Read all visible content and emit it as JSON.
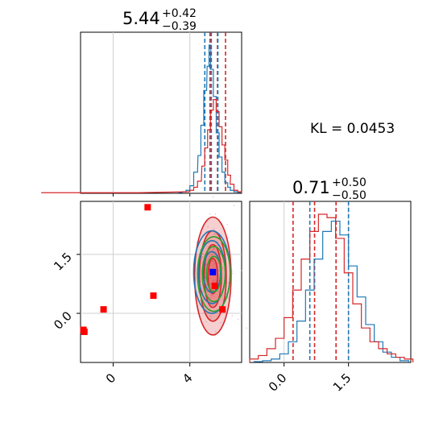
{
  "chart_data": [
    {
      "panel": "marginal-param-1",
      "type": "histogram",
      "title": {
        "main": "5.44",
        "sup": "+0.42",
        "sub": "−0.39"
      },
      "xlim": [
        -1.7,
        6.7
      ],
      "grid": true,
      "lines": {
        "red_dashed": [
          5.05,
          5.44,
          5.86
        ],
        "blue_dashed": [
          4.78,
          5.12,
          5.46
        ]
      },
      "series": [
        {
          "color": "#1f77b4",
          "x": [
            3.5,
            3.7,
            3.9,
            4.1,
            4.3,
            4.5,
            4.65,
            4.8,
            4.95,
            5.05,
            5.15,
            5.3,
            5.45,
            5.6,
            5.75,
            5.9,
            6.05,
            6.2,
            6.4,
            6.6
          ],
          "y": [
            0.5,
            1,
            2,
            5,
            14,
            25,
            45,
            68,
            84,
            98,
            82,
            64,
            40,
            24,
            14,
            7,
            4,
            2,
            1,
            0.5
          ]
        },
        {
          "color": "#d62728",
          "x": [
            -1.6,
            -1.2,
            3.9,
            4.1,
            4.3,
            4.5,
            4.7,
            4.85,
            5.0,
            5.15,
            5.3,
            5.45,
            5.6,
            5.75,
            5.9,
            6.05,
            6.2,
            6.4,
            6.6
          ],
          "y": [
            0.4,
            0.4,
            1,
            2,
            4,
            8,
            18,
            30,
            42,
            55,
            62,
            54,
            44,
            32,
            22,
            12,
            6,
            2,
            1
          ]
        }
      ]
    },
    {
      "panel": "scatter-contour",
      "type": "scatter",
      "xlim": [
        -1.7,
        6.7
      ],
      "ylim": [
        -1.25,
        2.85
      ],
      "xticks": [
        "0",
        "4"
      ],
      "xtick_values": [
        0,
        4
      ],
      "yticks": [
        "0.0",
        "1.5"
      ],
      "ytick_values": [
        0.0,
        1.5
      ],
      "grid": true,
      "red_points": [
        [
          -1.55,
          -0.42
        ],
        [
          -1.5,
          -0.47
        ],
        [
          1.8,
          2.7
        ],
        [
          2.1,
          0.45
        ],
        [
          -0.5,
          0.1
        ],
        [
          5.3,
          0.7
        ],
        [
          5.7,
          0.1
        ]
      ],
      "blue_point": [
        5.2,
        1.05
      ],
      "contours": [
        {
          "color": "#d62728",
          "fill": true,
          "cx": 5.2,
          "cy": 0.95,
          "levels": [
            [
              0.95,
              1.5
            ],
            [
              0.7,
              1.15
            ],
            [
              0.45,
              0.8
            ],
            [
              0.25,
              0.45
            ]
          ]
        },
        {
          "color": "#1f77b4",
          "fill": false,
          "cx": 5.15,
          "cy": 1.05,
          "levels": [
            [
              0.95,
              1.05
            ],
            [
              0.7,
              0.8
            ],
            [
              0.45,
              0.52
            ]
          ]
        },
        {
          "color": "#2ca02c",
          "fill": false,
          "cx": 5.25,
          "cy": 1.0,
          "levels": [
            [
              0.85,
              0.95
            ],
            [
              0.6,
              0.7
            ],
            [
              0.38,
              0.45
            ]
          ]
        }
      ]
    },
    {
      "panel": "marginal-param-2",
      "type": "histogram",
      "title": {
        "main": "0.71",
        "sup": "+0.50",
        "sub": "−0.50"
      },
      "xlim": [
        -0.8,
        2.95
      ],
      "xticks": [
        "0.0",
        "1.5"
      ],
      "xtick_values": [
        0.0,
        1.5
      ],
      "grid": true,
      "lines": {
        "red_dashed": [
          0.21,
          0.71,
          1.21
        ],
        "blue_dashed": [
          0.6,
          1.5
        ]
      },
      "series": [
        {
          "color": "#1f77b4",
          "x": [
            -0.6,
            -0.4,
            -0.2,
            0.0,
            0.2,
            0.4,
            0.6,
            0.8,
            1.0,
            1.2,
            1.4,
            1.6,
            1.8,
            2.0,
            2.2,
            2.4,
            2.6,
            2.8
          ],
          "y": [
            0.5,
            1,
            2,
            5,
            12,
            24,
            42,
            60,
            76,
            82,
            74,
            56,
            38,
            22,
            12,
            6,
            3,
            1
          ]
        },
        {
          "color": "#d62728",
          "x": [
            -0.7,
            -0.5,
            -0.3,
            -0.1,
            0.1,
            0.3,
            0.5,
            0.7,
            0.9,
            1.1,
            1.3,
            1.5,
            1.7,
            1.9,
            2.1,
            2.3,
            2.5,
            2.7,
            2.9
          ],
          "y": [
            2,
            4,
            8,
            14,
            26,
            42,
            60,
            76,
            86,
            84,
            72,
            52,
            34,
            20,
            12,
            8,
            5,
            3,
            2
          ]
        }
      ]
    }
  ],
  "annotation": {
    "kl_label": "KL = 0.0453"
  }
}
